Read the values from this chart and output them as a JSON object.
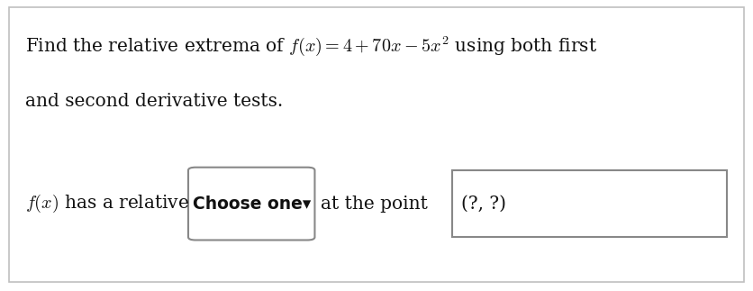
{
  "background_color": "#ffffff",
  "border_color": "#c0c0c0",
  "text_color": "#111111",
  "box_border_color": "#888888",
  "line1": "Find the relative extrema of $f(x) = 4 + 70x - 5x^2$ using both first",
  "line2": "and second derivative tests.",
  "line3_pre": "$f(x)$ has a relative",
  "dropdown_text": "Choose one▾",
  "line3_mid": "at the point",
  "input_text": "(?, ?)",
  "font_size_main": 14.5,
  "font_size_dropdown": 13.5
}
